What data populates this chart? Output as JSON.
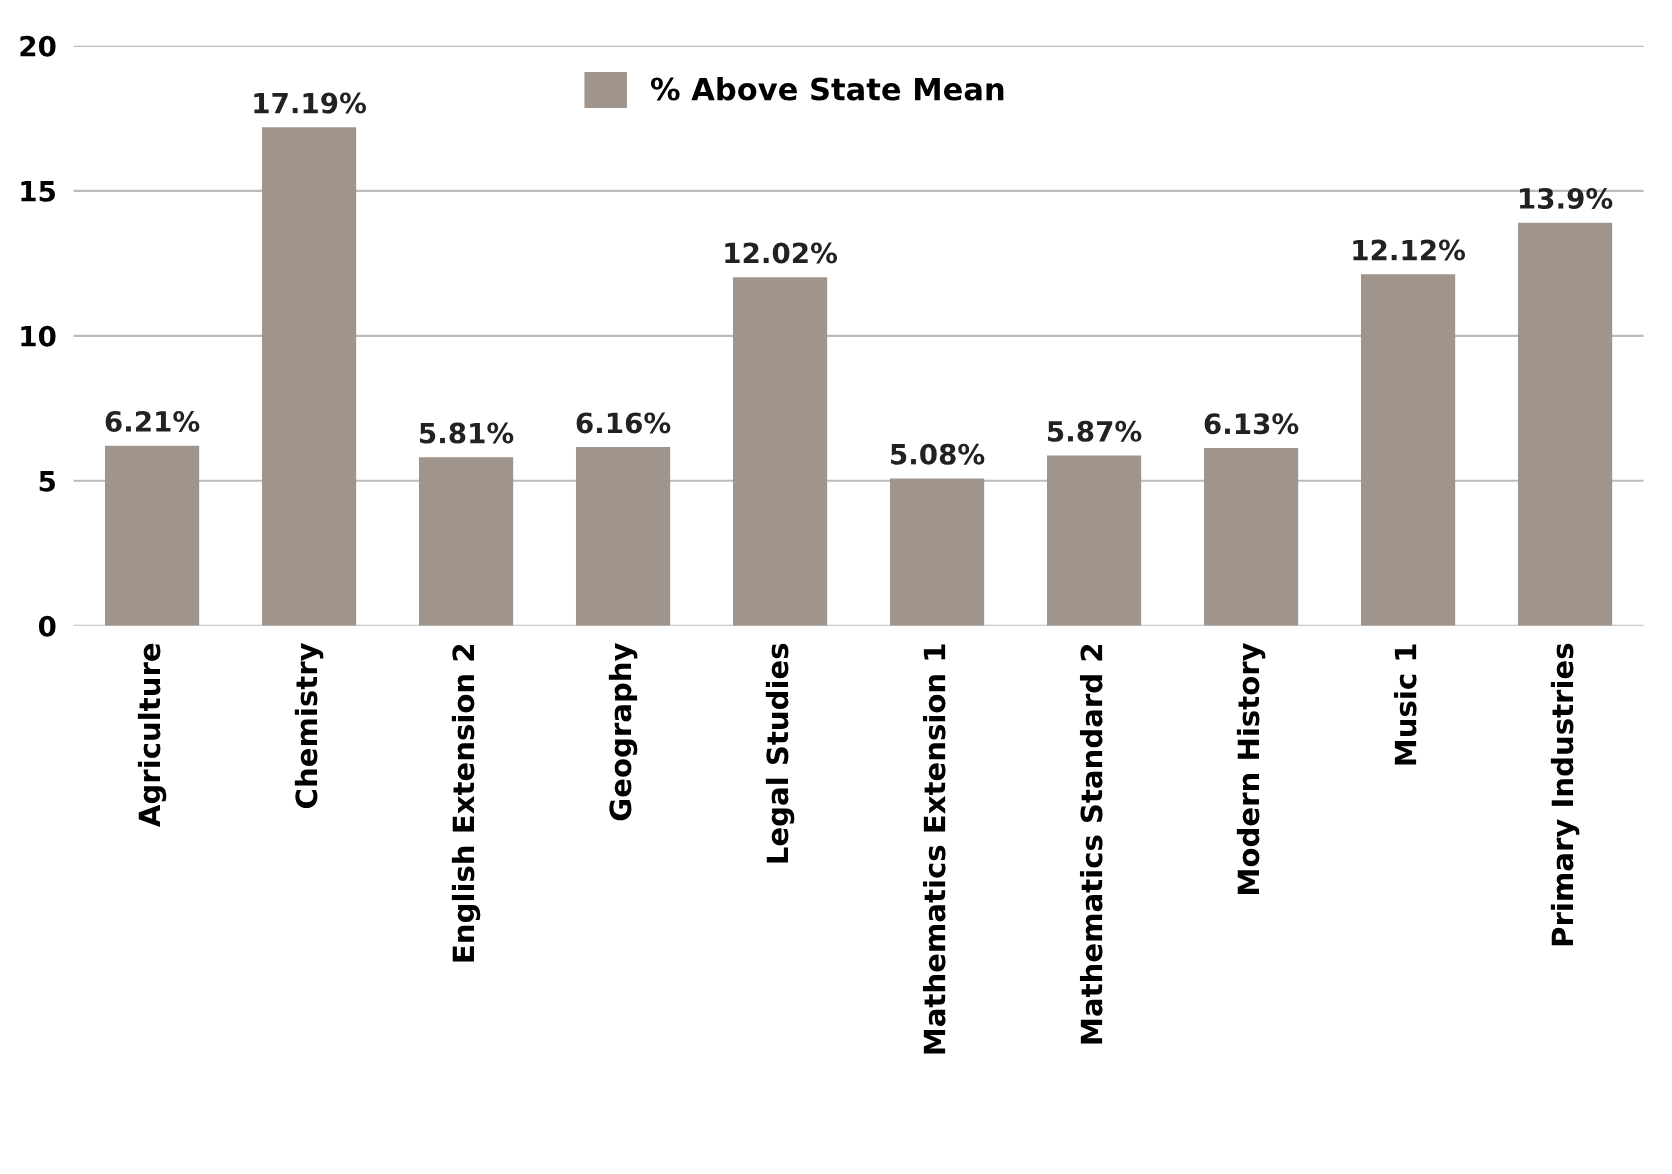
{
  "chart_data": {
    "type": "bar",
    "categories": [
      "Agriculture",
      "Chemistry",
      "English Extension 2",
      "Geography",
      "Legal Studies",
      "Mathematics Extension 1",
      "Mathematics Standard 2",
      "Modern History",
      "Music 1",
      "Primary Industries"
    ],
    "series": [
      {
        "name": "% Above State Mean",
        "color": "#a0958c",
        "values": [
          6.21,
          17.19,
          5.81,
          6.16,
          12.02,
          5.08,
          5.87,
          6.13,
          12.12,
          13.9
        ],
        "value_labels": [
          "6.21%",
          "17.19%",
          "5.81%",
          "6.16%",
          "12.02%",
          "5.08%",
          "5.87%",
          "6.13%",
          "12.12%",
          "13.9%"
        ]
      }
    ],
    "ylim": [
      0,
      20
    ],
    "yticks": [
      0,
      5,
      10,
      15,
      20
    ],
    "grid": "y",
    "legend": "top"
  }
}
